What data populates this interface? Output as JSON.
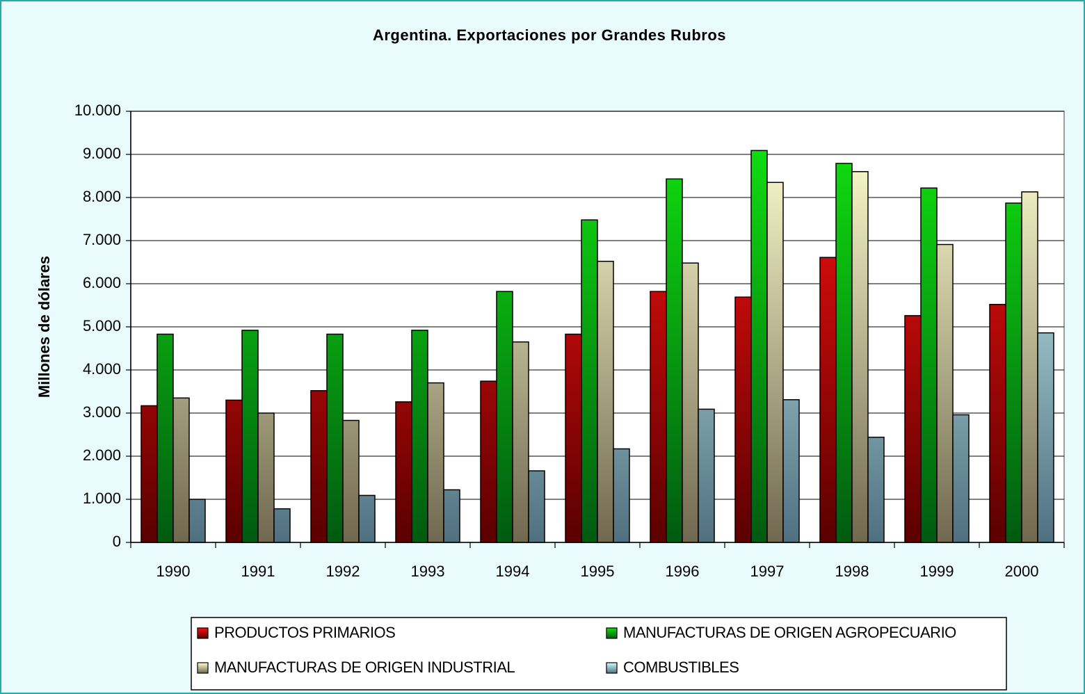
{
  "chart_data": {
    "type": "bar",
    "title": "Argentina. Exportaciones por Grandes Rubros",
    "ylabel": "Millones de dólares",
    "categories": [
      "1990",
      "1991",
      "1992",
      "1993",
      "1994",
      "1995",
      "1996",
      "1997",
      "1998",
      "1999",
      "2000"
    ],
    "series": [
      {
        "name": "PRODUCTOS PRIMARIOS",
        "color": "#ff1010",
        "values": [
          3170,
          3300,
          3520,
          3260,
          3740,
          4830,
          5820,
          5690,
          6610,
          5260,
          5520
        ]
      },
      {
        "name": "MANUFACTURAS DE ORIGEN AGROPECUARIO",
        "color": "#10e010",
        "values": [
          4830,
          4920,
          4830,
          4920,
          5820,
          7480,
          8430,
          9090,
          8790,
          8220,
          7870
        ]
      },
      {
        "name": "MANUFACTURAS DE ORIGEN INDUSTRIAL",
        "color": "#ffffd0",
        "values": [
          3350,
          3000,
          2830,
          3700,
          4650,
          6520,
          6480,
          8350,
          8600,
          6910,
          8130
        ]
      },
      {
        "name": "COMBUSTIBLES",
        "color": "#d0ffff",
        "values": [
          1000,
          780,
          1090,
          1220,
          1660,
          2170,
          3090,
          3310,
          2440,
          2960,
          4860
        ]
      }
    ],
    "ylim": [
      0,
      10000
    ],
    "yticks": [
      0,
      {
        "value": 1000,
        "label": "1.000"
      },
      {
        "value": 2000,
        "label": "2.000"
      },
      {
        "value": 3000,
        "label": "3.000"
      },
      {
        "value": 4000,
        "label": "4.000"
      },
      {
        "value": 5000,
        "label": "5.000"
      },
      {
        "value": 6000,
        "label": "6.000"
      },
      {
        "value": 7000,
        "label": "7.000"
      },
      {
        "value": 8000,
        "label": "8.000"
      },
      {
        "value": 9000,
        "label": "9.000"
      },
      {
        "value": 10000,
        "label": "10.000"
      }
    ],
    "grid": true,
    "legend": "bottom"
  }
}
